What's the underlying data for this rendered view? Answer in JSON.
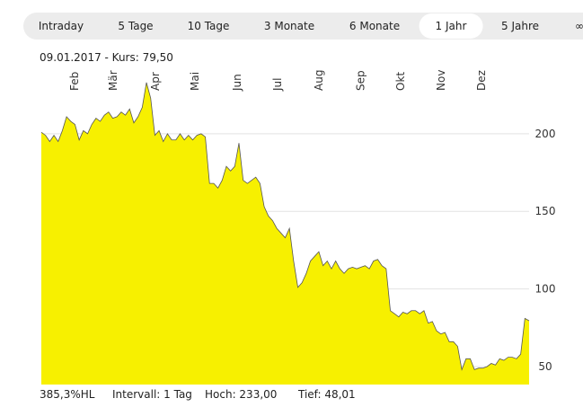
{
  "tabs": [
    {
      "label": "Intraday"
    },
    {
      "label": "5 Tage"
    },
    {
      "label": "10 Tage"
    },
    {
      "label": "3 Monate"
    },
    {
      "label": "6 Monate"
    },
    {
      "label": "1 Jahr",
      "selected": true
    },
    {
      "label": "5 Jahre"
    },
    {
      "label": "∞"
    }
  ],
  "header": "09.01.2017 - Kurs: 79,50",
  "footer": [
    "385,3%HL",
    "Intervall: 1 Tag",
    "Hoch: 233,00",
    "Tief: 48,01"
  ],
  "chart_data": {
    "type": "area",
    "values": [
      201,
      199,
      195,
      199,
      195,
      202,
      211,
      208,
      206,
      196,
      202,
      200,
      206,
      210,
      208,
      212,
      214,
      210,
      211,
      214,
      212,
      216,
      207,
      211,
      217,
      233,
      223,
      199,
      202,
      195,
      200,
      196,
      196,
      200,
      196,
      199,
      196,
      199,
      200,
      198,
      168,
      168,
      165,
      170,
      179,
      176,
      179,
      194,
      170,
      168,
      170,
      172,
      168,
      153,
      147,
      144,
      139,
      136,
      133,
      139,
      118,
      101,
      104,
      110,
      118,
      121,
      124,
      115,
      118,
      113,
      118,
      113,
      110,
      113,
      114,
      113,
      114,
      115,
      113,
      118,
      119,
      115,
      113,
      86,
      84,
      82,
      85,
      84,
      86,
      86,
      84,
      86,
      78,
      79,
      73,
      71,
      72,
      66,
      66,
      63,
      48,
      55,
      55,
      48,
      49,
      49,
      50,
      52,
      51,
      55,
      54,
      56,
      56,
      55,
      58,
      81,
      79.5
    ],
    "xlim": [
      0,
      116
    ],
    "xticks": [
      {
        "value": 7.9,
        "label": "Feb"
      },
      {
        "value": 17.1,
        "label": "Mär"
      },
      {
        "value": 27.1,
        "label": "Apr"
      },
      {
        "value": 36.5,
        "label": "Mai"
      },
      {
        "value": 46.6,
        "label": "Jun"
      },
      {
        "value": 56.2,
        "label": "Jul"
      },
      {
        "value": 66,
        "label": "Aug"
      },
      {
        "value": 75.9,
        "label": "Sep"
      },
      {
        "value": 85.5,
        "label": "Okt"
      },
      {
        "value": 95.1,
        "label": "Nov"
      },
      {
        "value": 104.7,
        "label": "Dez"
      }
    ],
    "ylim": [
      38.4,
      258.4
    ],
    "yticks": [
      50,
      100,
      150,
      200
    ],
    "grid": true,
    "color": "#f7f000",
    "line_color": "#555555"
  }
}
